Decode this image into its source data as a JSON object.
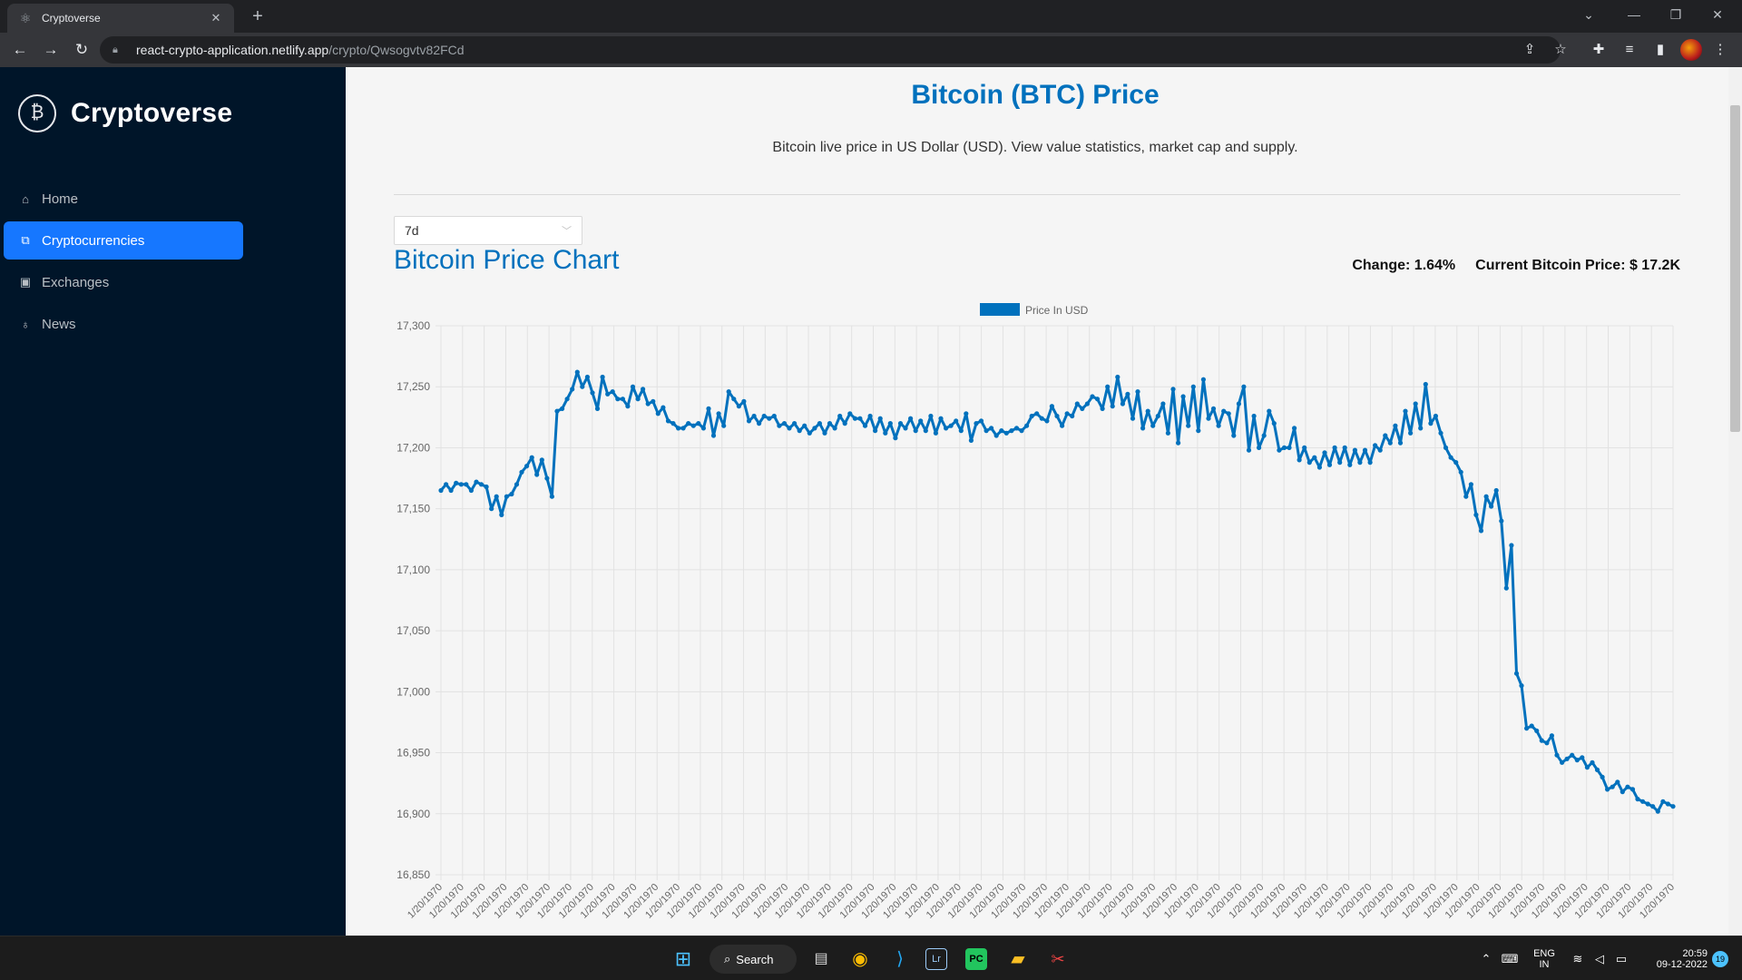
{
  "browser": {
    "tab_title": "Cryptoverse",
    "url_host": "react-crypto-application.netlify.app",
    "url_path": "/crypto/Qwsogvtv82FCd"
  },
  "sidebar": {
    "logo_text": "Cryptoverse",
    "items": [
      {
        "label": "Home",
        "icon": "home-icon"
      },
      {
        "label": "Cryptocurrencies",
        "icon": "fund-icon",
        "active": true
      },
      {
        "label": "Exchanges",
        "icon": "money-collect-icon"
      },
      {
        "label": "News",
        "icon": "bulb-icon"
      }
    ]
  },
  "main": {
    "title": "Bitcoin (BTC) Price",
    "subtitle": "Bitcoin live price in US Dollar (USD). View value statistics, market cap and supply.",
    "period_select": "7d",
    "chart_heading": "Bitcoin Price Chart",
    "change": "Change: 1.64%",
    "current_price": "Current Bitcoin Price: $ 17.2K"
  },
  "taskbar": {
    "search_label": "Search",
    "lang_top": "ENG",
    "lang_bottom": "IN",
    "time": "20:59",
    "date": "09-12-2022",
    "notif_count": "19"
  },
  "chart_data": {
    "type": "line",
    "legend": "Price In USD",
    "legend_position": "top-center",
    "color": "#0071bd",
    "ylim": [
      16850,
      17300
    ],
    "yticks": [
      16850,
      16900,
      16950,
      17000,
      17050,
      17100,
      17150,
      17200,
      17250,
      17300
    ],
    "xtick_label": "1/20/1970",
    "xtick_count": 58,
    "grid": true,
    "values": [
      17165,
      17170,
      17165,
      17171,
      17170,
      17170,
      17165,
      17172,
      17170,
      17168,
      17150,
      17160,
      17145,
      17160,
      17162,
      17170,
      17180,
      17185,
      17192,
      17178,
      17190,
      17175,
      17160,
      17230,
      17232,
      17240,
      17248,
      17262,
      17250,
      17258,
      17245,
      17232,
      17258,
      17244,
      17246,
      17240,
      17240,
      17234,
      17250,
      17240,
      17248,
      17236,
      17238,
      17228,
      17233,
      17222,
      17220,
      17216,
      17216,
      17220,
      17218,
      17220,
      17216,
      17232,
      17210,
      17228,
      17218,
      17246,
      17240,
      17234,
      17238,
      17222,
      17226,
      17220,
      17226,
      17224,
      17226,
      17218,
      17220,
      17216,
      17220,
      17214,
      17218,
      17212,
      17216,
      17220,
      17212,
      17220,
      17216,
      17226,
      17220,
      17228,
      17224,
      17224,
      17218,
      17226,
      17214,
      17224,
      17212,
      17220,
      17208,
      17220,
      17216,
      17224,
      17214,
      17222,
      17214,
      17226,
      17212,
      17224,
      17216,
      17218,
      17222,
      17214,
      17228,
      17206,
      17220,
      17222,
      17214,
      17216,
      17210,
      17214,
      17212,
      17214,
      17216,
      17214,
      17218,
      17226,
      17228,
      17224,
      17222,
      17234,
      17226,
      17218,
      17228,
      17226,
      17236,
      17232,
      17236,
      17242,
      17240,
      17232,
      17250,
      17234,
      17258,
      17236,
      17244,
      17224,
      17246,
      17216,
      17230,
      17218,
      17226,
      17236,
      17212,
      17248,
      17204,
      17242,
      17218,
      17250,
      17214,
      17256,
      17224,
      17232,
      17218,
      17230,
      17228,
      17210,
      17236,
      17250,
      17198,
      17226,
      17200,
      17210,
      17230,
      17220,
      17198,
      17200,
      17200,
      17216,
      17190,
      17200,
      17188,
      17192,
      17184,
      17196,
      17186,
      17200,
      17188,
      17200,
      17186,
      17198,
      17188,
      17198,
      17188,
      17202,
      17198,
      17210,
      17204,
      17218,
      17204,
      17230,
      17212,
      17236,
      17216,
      17252,
      17220,
      17226,
      17212,
      17200,
      17192,
      17188,
      17180,
      17160,
      17170,
      17145,
      17132,
      17160,
      17152,
      17165,
      17140,
      17085,
      17120,
      17015,
      17005,
      16970,
      16972,
      16968,
      16960,
      16958,
      16964,
      16948,
      16942,
      16945,
      16948,
      16944,
      16946,
      16938,
      16942,
      16936,
      16930,
      16920,
      16922,
      16926,
      16918,
      16922,
      16920,
      16912,
      16910,
      16908,
      16906,
      16902,
      16910,
      16908,
      16906
    ]
  }
}
